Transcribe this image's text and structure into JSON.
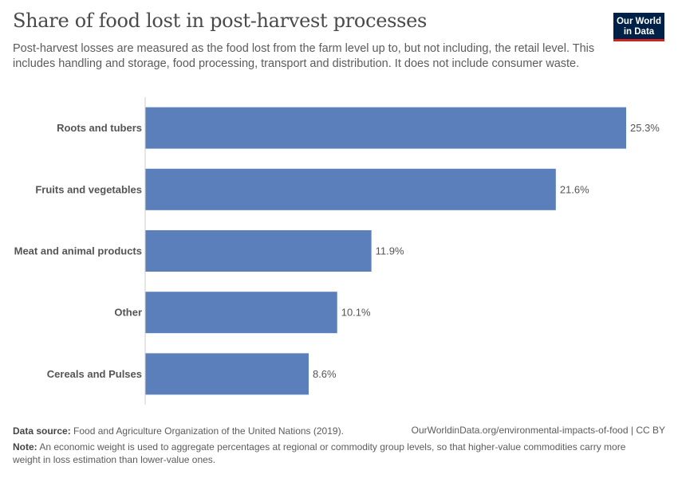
{
  "title": "Share of food lost in post-harvest processes",
  "subtitle": "Post-harvest losses are measured as the food lost from the farm level up to, but not including, the retail level. This includes handling and storage, food processing, transport and distribution. It does not include consumer waste.",
  "logo": {
    "line1": "Our World",
    "line2": "in Data"
  },
  "footer": {
    "source_label": "Data source:",
    "source": "Food and Agriculture Organization of the United Nations (2019).",
    "url": "OurWorldinData.org/environmental-impacts-of-food | CC BY",
    "note_label": "Note:",
    "note": "An economic weight is used to aggregate percentages at regional or commodity group levels, so that higher-value commodities carry more weight in loss estimation than lower-value ones."
  },
  "chart_data": {
    "type": "bar",
    "orientation": "horizontal",
    "categories": [
      "Roots and tubers",
      "Fruits and vegetables",
      "Meat and animal products",
      "Other",
      "Cereals and Pulses"
    ],
    "values": [
      25.3,
      21.6,
      11.9,
      10.1,
      8.6
    ],
    "value_labels": [
      "25.3%",
      "21.6%",
      "11.9%",
      "10.1%",
      "8.6%"
    ],
    "unit": "%",
    "bar_color": "#5b7fbb",
    "grid": false
  }
}
